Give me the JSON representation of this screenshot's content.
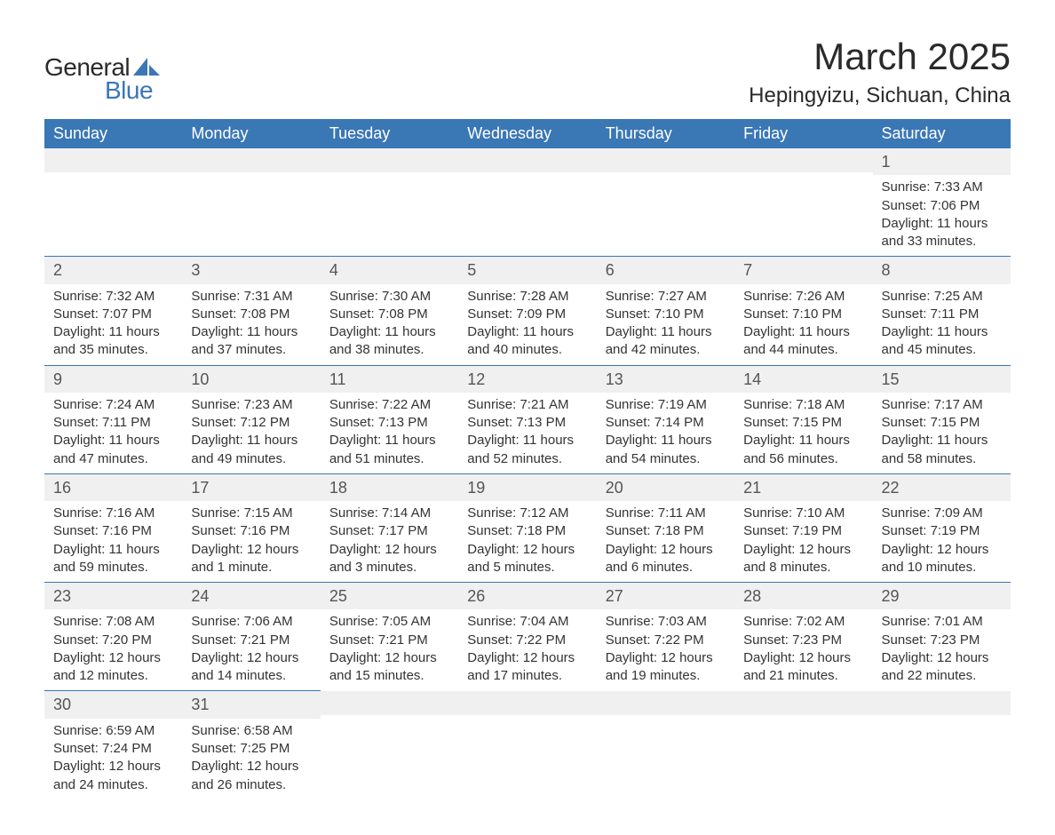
{
  "logo": {
    "text_general": "General",
    "text_blue": "Blue",
    "sail_color": "#3a77b5"
  },
  "header": {
    "month_title": "March 2025",
    "location": "Hepingyizu, Sichuan, China"
  },
  "colors": {
    "header_bg": "#3a77b5",
    "header_text": "#ffffff",
    "daynum_bg": "#f0f0f0",
    "body_text": "#333333",
    "row_divider": "#3a77b5"
  },
  "calendar": {
    "day_headers": [
      "Sunday",
      "Monday",
      "Tuesday",
      "Wednesday",
      "Thursday",
      "Friday",
      "Saturday"
    ],
    "weeks": [
      [
        {
          "blank": true
        },
        {
          "blank": true
        },
        {
          "blank": true
        },
        {
          "blank": true
        },
        {
          "blank": true
        },
        {
          "blank": true
        },
        {
          "day": "1",
          "sunrise": "Sunrise: 7:33 AM",
          "sunset": "Sunset: 7:06 PM",
          "daylight": "Daylight: 11 hours and 33 minutes."
        }
      ],
      [
        {
          "day": "2",
          "sunrise": "Sunrise: 7:32 AM",
          "sunset": "Sunset: 7:07 PM",
          "daylight": "Daylight: 11 hours and 35 minutes."
        },
        {
          "day": "3",
          "sunrise": "Sunrise: 7:31 AM",
          "sunset": "Sunset: 7:08 PM",
          "daylight": "Daylight: 11 hours and 37 minutes."
        },
        {
          "day": "4",
          "sunrise": "Sunrise: 7:30 AM",
          "sunset": "Sunset: 7:08 PM",
          "daylight": "Daylight: 11 hours and 38 minutes."
        },
        {
          "day": "5",
          "sunrise": "Sunrise: 7:28 AM",
          "sunset": "Sunset: 7:09 PM",
          "daylight": "Daylight: 11 hours and 40 minutes."
        },
        {
          "day": "6",
          "sunrise": "Sunrise: 7:27 AM",
          "sunset": "Sunset: 7:10 PM",
          "daylight": "Daylight: 11 hours and 42 minutes."
        },
        {
          "day": "7",
          "sunrise": "Sunrise: 7:26 AM",
          "sunset": "Sunset: 7:10 PM",
          "daylight": "Daylight: 11 hours and 44 minutes."
        },
        {
          "day": "8",
          "sunrise": "Sunrise: 7:25 AM",
          "sunset": "Sunset: 7:11 PM",
          "daylight": "Daylight: 11 hours and 45 minutes."
        }
      ],
      [
        {
          "day": "9",
          "sunrise": "Sunrise: 7:24 AM",
          "sunset": "Sunset: 7:11 PM",
          "daylight": "Daylight: 11 hours and 47 minutes."
        },
        {
          "day": "10",
          "sunrise": "Sunrise: 7:23 AM",
          "sunset": "Sunset: 7:12 PM",
          "daylight": "Daylight: 11 hours and 49 minutes."
        },
        {
          "day": "11",
          "sunrise": "Sunrise: 7:22 AM",
          "sunset": "Sunset: 7:13 PM",
          "daylight": "Daylight: 11 hours and 51 minutes."
        },
        {
          "day": "12",
          "sunrise": "Sunrise: 7:21 AM",
          "sunset": "Sunset: 7:13 PM",
          "daylight": "Daylight: 11 hours and 52 minutes."
        },
        {
          "day": "13",
          "sunrise": "Sunrise: 7:19 AM",
          "sunset": "Sunset: 7:14 PM",
          "daylight": "Daylight: 11 hours and 54 minutes."
        },
        {
          "day": "14",
          "sunrise": "Sunrise: 7:18 AM",
          "sunset": "Sunset: 7:15 PM",
          "daylight": "Daylight: 11 hours and 56 minutes."
        },
        {
          "day": "15",
          "sunrise": "Sunrise: 7:17 AM",
          "sunset": "Sunset: 7:15 PM",
          "daylight": "Daylight: 11 hours and 58 minutes."
        }
      ],
      [
        {
          "day": "16",
          "sunrise": "Sunrise: 7:16 AM",
          "sunset": "Sunset: 7:16 PM",
          "daylight": "Daylight: 11 hours and 59 minutes."
        },
        {
          "day": "17",
          "sunrise": "Sunrise: 7:15 AM",
          "sunset": "Sunset: 7:16 PM",
          "daylight": "Daylight: 12 hours and 1 minute."
        },
        {
          "day": "18",
          "sunrise": "Sunrise: 7:14 AM",
          "sunset": "Sunset: 7:17 PM",
          "daylight": "Daylight: 12 hours and 3 minutes."
        },
        {
          "day": "19",
          "sunrise": "Sunrise: 7:12 AM",
          "sunset": "Sunset: 7:18 PM",
          "daylight": "Daylight: 12 hours and 5 minutes."
        },
        {
          "day": "20",
          "sunrise": "Sunrise: 7:11 AM",
          "sunset": "Sunset: 7:18 PM",
          "daylight": "Daylight: 12 hours and 6 minutes."
        },
        {
          "day": "21",
          "sunrise": "Sunrise: 7:10 AM",
          "sunset": "Sunset: 7:19 PM",
          "daylight": "Daylight: 12 hours and 8 minutes."
        },
        {
          "day": "22",
          "sunrise": "Sunrise: 7:09 AM",
          "sunset": "Sunset: 7:19 PM",
          "daylight": "Daylight: 12 hours and 10 minutes."
        }
      ],
      [
        {
          "day": "23",
          "sunrise": "Sunrise: 7:08 AM",
          "sunset": "Sunset: 7:20 PM",
          "daylight": "Daylight: 12 hours and 12 minutes."
        },
        {
          "day": "24",
          "sunrise": "Sunrise: 7:06 AM",
          "sunset": "Sunset: 7:21 PM",
          "daylight": "Daylight: 12 hours and 14 minutes."
        },
        {
          "day": "25",
          "sunrise": "Sunrise: 7:05 AM",
          "sunset": "Sunset: 7:21 PM",
          "daylight": "Daylight: 12 hours and 15 minutes."
        },
        {
          "day": "26",
          "sunrise": "Sunrise: 7:04 AM",
          "sunset": "Sunset: 7:22 PM",
          "daylight": "Daylight: 12 hours and 17 minutes."
        },
        {
          "day": "27",
          "sunrise": "Sunrise: 7:03 AM",
          "sunset": "Sunset: 7:22 PM",
          "daylight": "Daylight: 12 hours and 19 minutes."
        },
        {
          "day": "28",
          "sunrise": "Sunrise: 7:02 AM",
          "sunset": "Sunset: 7:23 PM",
          "daylight": "Daylight: 12 hours and 21 minutes."
        },
        {
          "day": "29",
          "sunrise": "Sunrise: 7:01 AM",
          "sunset": "Sunset: 7:23 PM",
          "daylight": "Daylight: 12 hours and 22 minutes."
        }
      ],
      [
        {
          "day": "30",
          "sunrise": "Sunrise: 6:59 AM",
          "sunset": "Sunset: 7:24 PM",
          "daylight": "Daylight: 12 hours and 24 minutes."
        },
        {
          "day": "31",
          "sunrise": "Sunrise: 6:58 AM",
          "sunset": "Sunset: 7:25 PM",
          "daylight": "Daylight: 12 hours and 26 minutes."
        },
        {
          "blank": true,
          "tail": true
        },
        {
          "blank": true,
          "tail": true
        },
        {
          "blank": true,
          "tail": true
        },
        {
          "blank": true,
          "tail": true
        },
        {
          "blank": true,
          "tail": true
        }
      ]
    ]
  }
}
